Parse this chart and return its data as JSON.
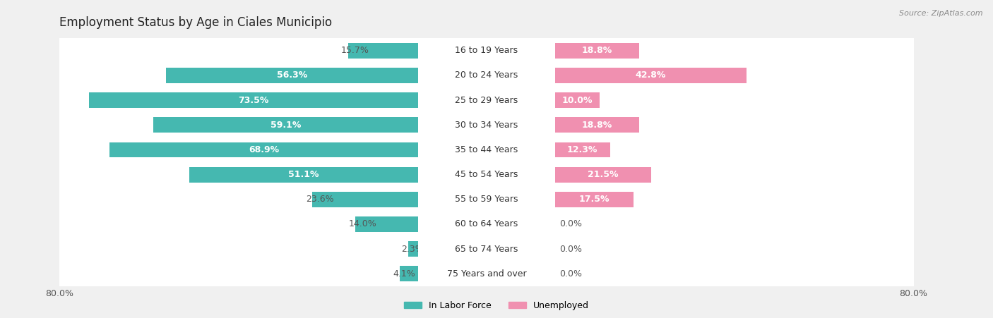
{
  "title": "Employment Status by Age in Ciales Municipio",
  "source": "Source: ZipAtlas.com",
  "categories": [
    "16 to 19 Years",
    "20 to 24 Years",
    "25 to 29 Years",
    "30 to 34 Years",
    "35 to 44 Years",
    "45 to 54 Years",
    "55 to 59 Years",
    "60 to 64 Years",
    "65 to 74 Years",
    "75 Years and over"
  ],
  "labor_force": [
    15.7,
    56.3,
    73.5,
    59.1,
    68.9,
    51.1,
    23.6,
    14.0,
    2.3,
    4.1
  ],
  "unemployed": [
    18.8,
    42.8,
    10.0,
    18.8,
    12.3,
    21.5,
    17.5,
    0.0,
    0.0,
    0.0
  ],
  "labor_force_color": "#45b8b0",
  "unemployed_color": "#f090b0",
  "background_color": "#f0f0f0",
  "row_color": "#ffffff",
  "row_alt_color": "#f8f8f8",
  "xlim": 80.0,
  "title_fontsize": 12,
  "label_fontsize": 9,
  "tick_fontsize": 9,
  "legend_fontsize": 9,
  "bar_height": 0.62,
  "title_color": "#222222",
  "source_color": "#888888",
  "value_color_inside": "#ffffff",
  "value_color_outside": "#555555",
  "center_label_color": "#333333",
  "inside_threshold_lf": 25,
  "inside_threshold_un": 10
}
